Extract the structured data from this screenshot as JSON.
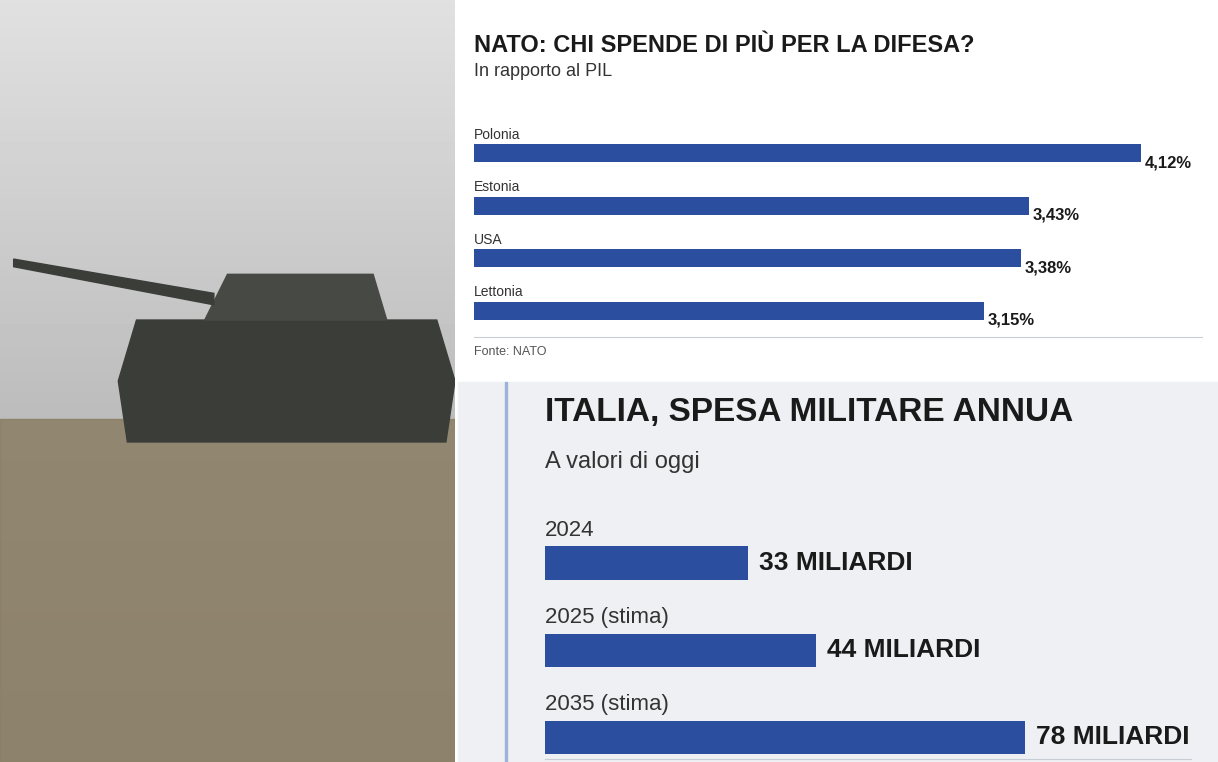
{
  "chart_data": [
    {
      "type": "bar",
      "orientation": "horizontal",
      "title": "NATO: CHI SPENDE DI PIÙ PER LA DIFESA?",
      "subtitle": "In rapporto al PIL",
      "categories": [
        "Polonia",
        "Estonia",
        "USA",
        "Lettonia"
      ],
      "values": [
        4.12,
        3.43,
        3.38,
        3.15
      ],
      "value_labels": [
        "4,12%",
        "3,43%",
        "3,38%",
        "3,15%"
      ],
      "data_labels": true,
      "color": "#2b4f9e",
      "xlim": [
        0,
        4.5
      ],
      "xticks": [],
      "tick_labels": false,
      "grid": false,
      "source": "Fonte: NATO"
    },
    {
      "type": "bar",
      "orientation": "horizontal",
      "title": "ITALIA, SPESA MILITARE ANNUA",
      "subtitle": "A valori di oggi",
      "categories": [
        "2024",
        "2025 (stima)",
        "2035 (stima)"
      ],
      "values": [
        33,
        44,
        78
      ],
      "value_labels": [
        "33 MILIARDI",
        "44 MILIARDI",
        "78 MILIARDI"
      ],
      "data_labels": true,
      "color": "#2b4f9e",
      "xlim": [
        0,
        105
      ],
      "xticks": [],
      "tick_labels": false,
      "grid": false
    }
  ]
}
